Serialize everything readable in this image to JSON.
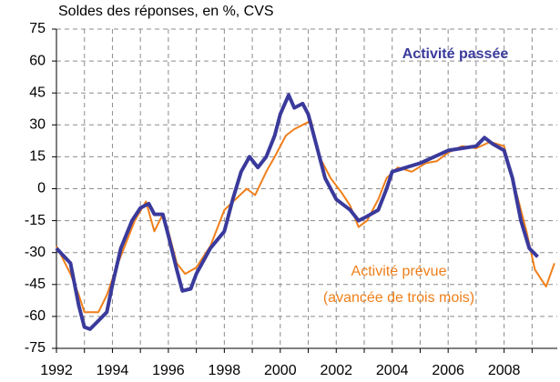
{
  "chart_data": {
    "type": "line",
    "y_axis_label": "Soldes des réponses, en %, CVS",
    "xlim": [
      1992,
      2009.9
    ],
    "xticks": [
      1992,
      1994,
      1996,
      1998,
      2000,
      2002,
      2004,
      2006,
      2008
    ],
    "xminor_ticks": [
      1993,
      1995,
      1997,
      1999,
      2001,
      2003,
      2005,
      2007,
      2009
    ],
    "ylim": [
      -75,
      75
    ],
    "yticks": [
      -75,
      -60,
      -45,
      -30,
      -15,
      0,
      15,
      30,
      45,
      60,
      75
    ],
    "grid": true,
    "annotations": [
      "Activité passée",
      "Activité prévue",
      "(avancée de trois mois)"
    ],
    "series": [
      {
        "name": "Activité passée",
        "color": "#3a3a9c",
        "width": 4,
        "x": [
          1992.0,
          1992.5,
          1992.8,
          1993.0,
          1993.2,
          1993.5,
          1993.8,
          1994.0,
          1994.3,
          1994.7,
          1995.0,
          1995.3,
          1995.5,
          1995.8,
          1996.0,
          1996.3,
          1996.5,
          1996.8,
          1997.0,
          1997.5,
          1998.0,
          1998.3,
          1998.6,
          1998.9,
          1999.2,
          1999.5,
          1999.8,
          2000.0,
          2000.3,
          2000.5,
          2000.8,
          2001.0,
          2001.3,
          2001.6,
          2002.0,
          2002.5,
          2002.8,
          2003.1,
          2003.5,
          2003.8,
          2004.0,
          2004.5,
          2005.0,
          2005.5,
          2006.0,
          2006.5,
          2007.0,
          2007.3,
          2007.6,
          2008.0,
          2008.3,
          2008.6,
          2008.9,
          2009.2
        ],
        "values": [
          -28,
          -35,
          -55,
          -65,
          -66,
          -62,
          -58,
          -45,
          -28,
          -15,
          -9,
          -7,
          -12,
          -12,
          -22,
          -38,
          -48,
          -47,
          -40,
          -28,
          -20,
          -5,
          8,
          15,
          10,
          15,
          25,
          35,
          44,
          38,
          40,
          35,
          20,
          5,
          -5,
          -10,
          -15,
          -13,
          -10,
          0,
          8,
          10,
          12,
          15,
          18,
          19,
          20,
          24,
          21,
          18,
          5,
          -15,
          -28,
          -32
        ]
      },
      {
        "name": "Activité prévue",
        "color": "#f07f1a",
        "width": 2,
        "x": [
          1992.0,
          1992.5,
          1992.8,
          1993.0,
          1993.5,
          1993.8,
          1994.2,
          1994.5,
          1994.8,
          1995.2,
          1995.5,
          1995.8,
          1996.0,
          1996.3,
          1996.6,
          1997.0,
          1997.5,
          1998.0,
          1998.4,
          1998.8,
          1999.1,
          1999.5,
          1999.8,
          2000.2,
          2000.5,
          2000.8,
          2001.1,
          2001.4,
          2001.8,
          2002.2,
          2002.5,
          2002.8,
          2003.1,
          2003.5,
          2003.8,
          2004.2,
          2004.7,
          2005.2,
          2005.6,
          2006.0,
          2006.5,
          2007.0,
          2007.5,
          2008.0,
          2008.4,
          2008.8,
          2009.1,
          2009.5,
          2009.8
        ],
        "values": [
          -27,
          -40,
          -50,
          -58,
          -58,
          -50,
          -35,
          -25,
          -15,
          -6,
          -20,
          -12,
          -20,
          -35,
          -40,
          -37,
          -27,
          -10,
          -5,
          0,
          -3,
          8,
          15,
          25,
          28,
          30,
          32,
          15,
          5,
          -2,
          -8,
          -18,
          -15,
          -5,
          5,
          10,
          8,
          12,
          13,
          17,
          20,
          19,
          22,
          20,
          0,
          -20,
          -38,
          -46,
          -35
        ]
      }
    ]
  }
}
